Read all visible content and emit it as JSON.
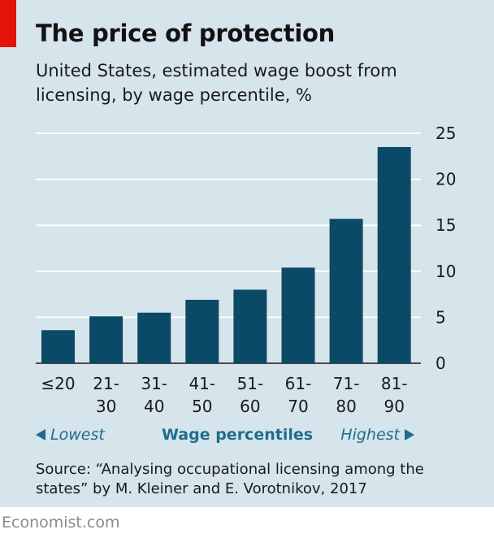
{
  "header": {
    "title": "The price of protection",
    "subtitle": "United States, estimated wage boost from licensing, by wage percentile, %"
  },
  "legend": {
    "lowest": "Lowest",
    "axis_title": "Wage percentiles",
    "highest": "Highest"
  },
  "footer": {
    "source": "Source: “Analysing occupational licensing among the states” by M. Kleiner and E. Vorotnikov, 2017",
    "brand": "Economist.com"
  },
  "colors": {
    "bar": "#0b4a66",
    "background": "#d6e4ec",
    "accent": "#e3120b",
    "label_accent": "#1f6c8c"
  },
  "chart_data": {
    "type": "bar",
    "title": "The price of protection",
    "subtitle": "United States, estimated wage boost from licensing, by wage percentile, %",
    "xlabel": "Wage percentiles",
    "ylabel": "",
    "categories": [
      [
        "≤20"
      ],
      [
        "21-",
        "30"
      ],
      [
        "31-",
        "40"
      ],
      [
        "41-",
        "50"
      ],
      [
        "51-",
        "60"
      ],
      [
        "61-",
        "70"
      ],
      [
        "71-",
        "80"
      ],
      [
        "81-",
        "90"
      ]
    ],
    "values": [
      3.6,
      5.1,
      5.5,
      6.9,
      8.0,
      10.4,
      15.7,
      23.5
    ],
    "ylim": [
      0,
      25
    ],
    "yticks": [
      0,
      5,
      10,
      15,
      20,
      25
    ],
    "y_axis_position": "right",
    "grid": true
  }
}
